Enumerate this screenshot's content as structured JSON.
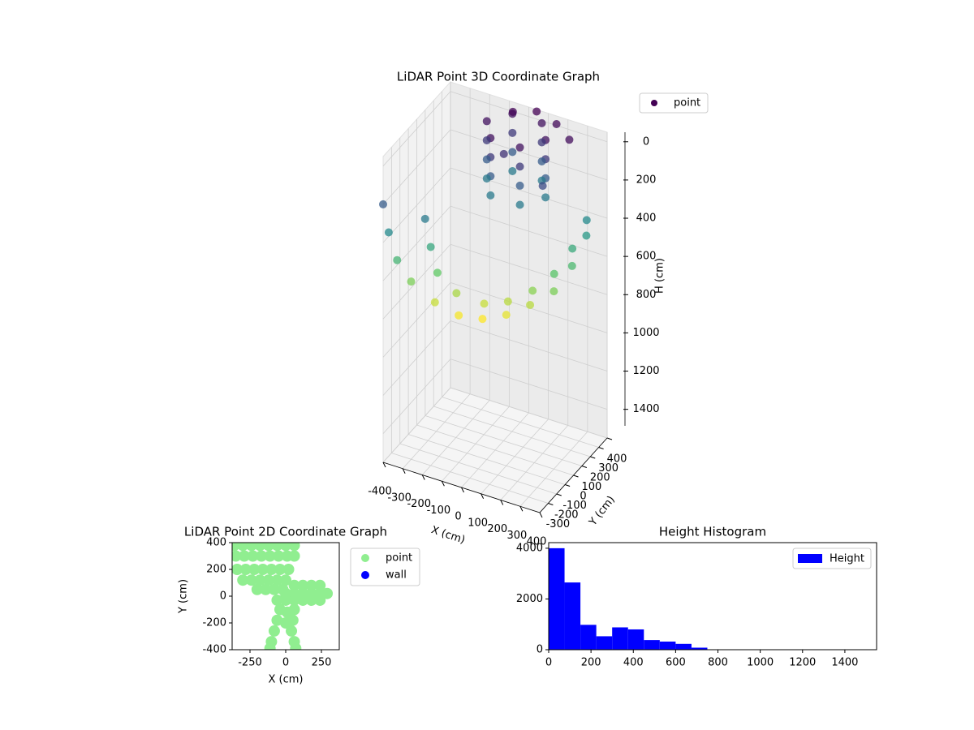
{
  "chart_data": [
    {
      "type": "scatter3d",
      "title": "LiDAR Point 3D Coordinate Graph",
      "xlabel": "X (cm)",
      "ylabel": "Y (cm)",
      "zlabel": "H (cm)",
      "colormap": "viridis",
      "xlim": [
        -400,
        400
      ],
      "ylim": [
        -400,
        400
      ],
      "zlim": [
        1550,
        -50
      ],
      "xticks": [
        -400,
        -300,
        -200,
        -100,
        0,
        100,
        200,
        300,
        400
      ],
      "yticks": [
        -300,
        -200,
        -100,
        0,
        100,
        200,
        300,
        400
      ],
      "zticks": [
        0,
        200,
        400,
        600,
        800,
        1000,
        1200,
        1400
      ],
      "series": [
        {
          "name": "point",
          "color": "#440154",
          "x": [
            -400,
            -380,
            -350,
            -300,
            -200,
            -100,
            0,
            100,
            200,
            300,
            350,
            380,
            -250,
            -230,
            -200,
            -120,
            0,
            100,
            200,
            280,
            330,
            360,
            150,
            75,
            -75,
            -150,
            -75,
            75,
            150,
            75,
            -75,
            -150,
            -75,
            75,
            150,
            75,
            -75,
            -150,
            -75,
            75,
            150,
            75,
            -75,
            -150,
            -75,
            75,
            -60,
            40,
            150,
            250,
            -20,
            200
          ],
          "y": [
            -400,
            -380,
            -350,
            -300,
            -250,
            -200,
            -150,
            -100,
            -50,
            0,
            100,
            200,
            -250,
            -230,
            -220,
            -180,
            -130,
            -80,
            -20,
            50,
            150,
            250,
            250,
            380,
            380,
            250,
            120,
            120,
            250,
            380,
            380,
            250,
            120,
            120,
            250,
            380,
            380,
            250,
            120,
            120,
            250,
            380,
            380,
            250,
            120,
            120,
            350,
            400,
            380,
            300,
            150,
            100
          ],
          "h": [
            200,
            350,
            500,
            620,
            720,
            780,
            790,
            760,
            700,
            620,
            520,
            400,
            300,
            450,
            580,
            680,
            720,
            700,
            640,
            560,
            460,
            350,
            0,
            0,
            0,
            0,
            0,
            0,
            100,
            100,
            100,
            100,
            100,
            100,
            200,
            200,
            200,
            200,
            200,
            200,
            300,
            300,
            300,
            300,
            300,
            300,
            -30,
            -40,
            -20,
            -10,
            80,
            150
          ]
        }
      ]
    },
    {
      "type": "scatter",
      "title": "LiDAR Point 2D Coordinate Graph",
      "xlabel": "X (cm)",
      "ylabel": "Y (cm)",
      "xlim": [
        -375,
        375
      ],
      "ylim": [
        -400,
        400
      ],
      "xticks": [
        -250,
        0,
        250
      ],
      "yticks": [
        -400,
        -200,
        0,
        200,
        400
      ],
      "series": [
        {
          "name": "point",
          "color": "#90ee90",
          "x": [
            -360,
            -300,
            -240,
            -180,
            -120,
            -60,
            0,
            60,
            -350,
            -290,
            -230,
            -170,
            -110,
            -50,
            10,
            60,
            -340,
            -280,
            -220,
            -160,
            -100,
            -40,
            20,
            -300,
            -240,
            -180,
            -120,
            -60,
            0,
            -200,
            -140,
            -80,
            -20,
            60,
            120,
            180,
            240,
            0,
            60,
            120,
            180,
            240,
            290,
            -60,
            0,
            60,
            120,
            180,
            240,
            -40,
            -60,
            -80,
            -100,
            -110,
            60,
            50,
            40,
            60,
            70,
            10,
            0
          ],
          "y": [
            380,
            380,
            380,
            380,
            380,
            380,
            380,
            380,
            300,
            300,
            300,
            300,
            300,
            300,
            300,
            300,
            200,
            200,
            200,
            200,
            200,
            200,
            200,
            120,
            120,
            120,
            120,
            120,
            120,
            50,
            50,
            50,
            50,
            80,
            80,
            80,
            80,
            20,
            20,
            20,
            20,
            20,
            20,
            -30,
            -30,
            -30,
            -30,
            -30,
            -30,
            -100,
            -180,
            -260,
            -340,
            -390,
            -100,
            -180,
            -260,
            -340,
            -390,
            -120,
            -200
          ]
        },
        {
          "name": "wall",
          "color": "#0000ff",
          "x": [],
          "y": []
        }
      ]
    },
    {
      "type": "histogram",
      "title": "Height Histogram",
      "xlim": [
        0,
        1550
      ],
      "ylim": [
        0,
        4220
      ],
      "xticks": [
        0,
        200,
        400,
        600,
        800,
        1000,
        1200,
        1400
      ],
      "yticks": [
        0,
        2000,
        4000
      ],
      "series": [
        {
          "name": "Height",
          "color": "#0000ff",
          "bins": [
            0,
            75,
            150,
            225,
            300,
            375,
            450,
            525,
            600,
            675,
            750,
            825,
            900,
            975,
            1050,
            1125,
            1200,
            1275,
            1350,
            1425,
            1500
          ],
          "values": [
            4000,
            2650,
            980,
            530,
            880,
            800,
            380,
            320,
            230,
            80,
            0,
            0,
            0,
            0,
            0,
            0,
            0,
            0,
            0,
            0
          ]
        }
      ]
    }
  ]
}
